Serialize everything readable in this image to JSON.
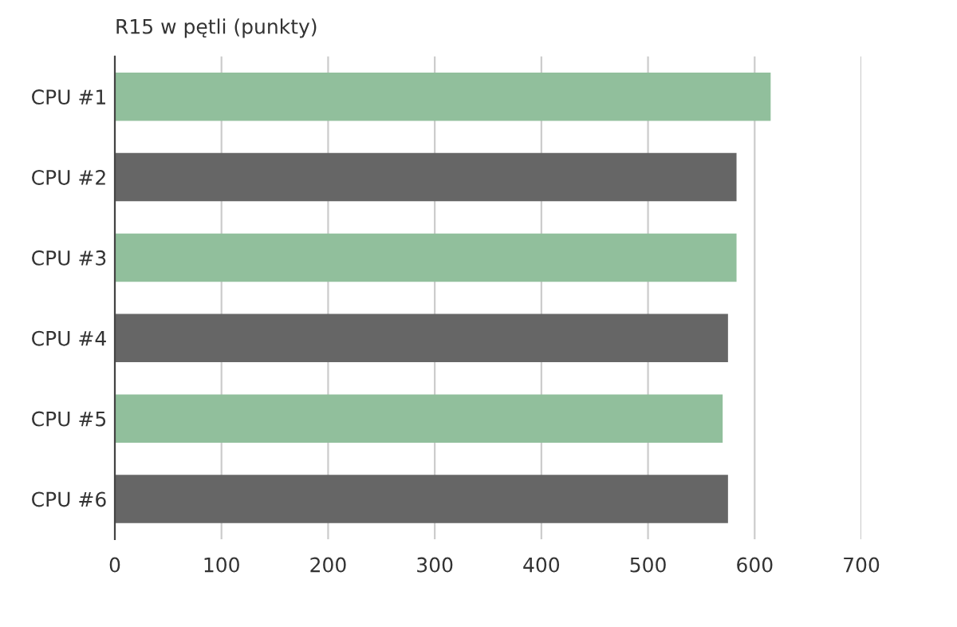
{
  "chart_data": {
    "type": "bar",
    "orientation": "horizontal",
    "title": "R15 w pętli (punkty)",
    "categories": [
      "CPU #1",
      "CPU #2",
      "CPU #3",
      "CPU #4",
      "CPU #5",
      "CPU #6"
    ],
    "values": [
      615,
      583,
      583,
      575,
      570,
      575
    ],
    "colors": [
      "#91bf9c",
      "#666666",
      "#91bf9c",
      "#666666",
      "#91bf9c",
      "#666666"
    ],
    "xlim": [
      0,
      700
    ],
    "xticks": [
      0,
      100,
      200,
      300,
      400,
      500,
      600,
      700
    ],
    "grid": "x"
  }
}
